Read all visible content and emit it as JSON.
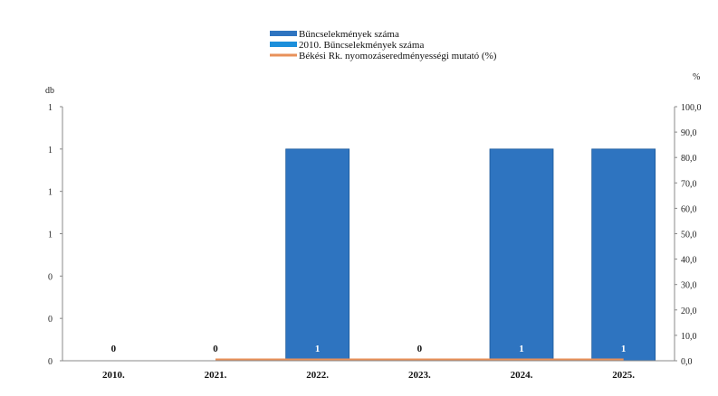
{
  "chart_data": {
    "type": "bar",
    "title": "",
    "categories": [
      "2010.",
      "2021.",
      "2022.",
      "2023.",
      "2024.",
      "2025."
    ],
    "series": [
      {
        "name": "Bűncselekmények száma",
        "type": "bar",
        "axis": "left",
        "values": [
          0,
          0,
          1,
          0,
          1,
          1
        ],
        "color": "#2E74C0"
      },
      {
        "name": "2010. Bűncselekmények száma",
        "type": "bar",
        "axis": "left",
        "values": [
          null,
          null,
          null,
          null,
          null,
          null
        ],
        "color": "#1C8FDB"
      },
      {
        "name": "Békési Rk. nyomozáseredményességi mutató (%)",
        "type": "line",
        "axis": "right",
        "values": [
          null,
          0,
          0,
          0,
          0,
          0
        ],
        "color": "#E8915A"
      }
    ],
    "data_labels": [
      "0",
      "0",
      "1",
      "0",
      "1",
      "1"
    ],
    "left_axis": {
      "unit": "db",
      "ticks": [
        "0",
        "0",
        "0",
        "1",
        "1",
        "1",
        "1"
      ],
      "lim": [
        0,
        1.2
      ]
    },
    "right_axis": {
      "unit": "%",
      "ticks": [
        "0,0",
        "10,0",
        "20,0",
        "30,0",
        "40,0",
        "50,0",
        "60,0",
        "70,0",
        "80,0",
        "90,0",
        "100,0"
      ],
      "lim": [
        0,
        100
      ]
    },
    "legend_position": "top-center",
    "grid": false
  }
}
